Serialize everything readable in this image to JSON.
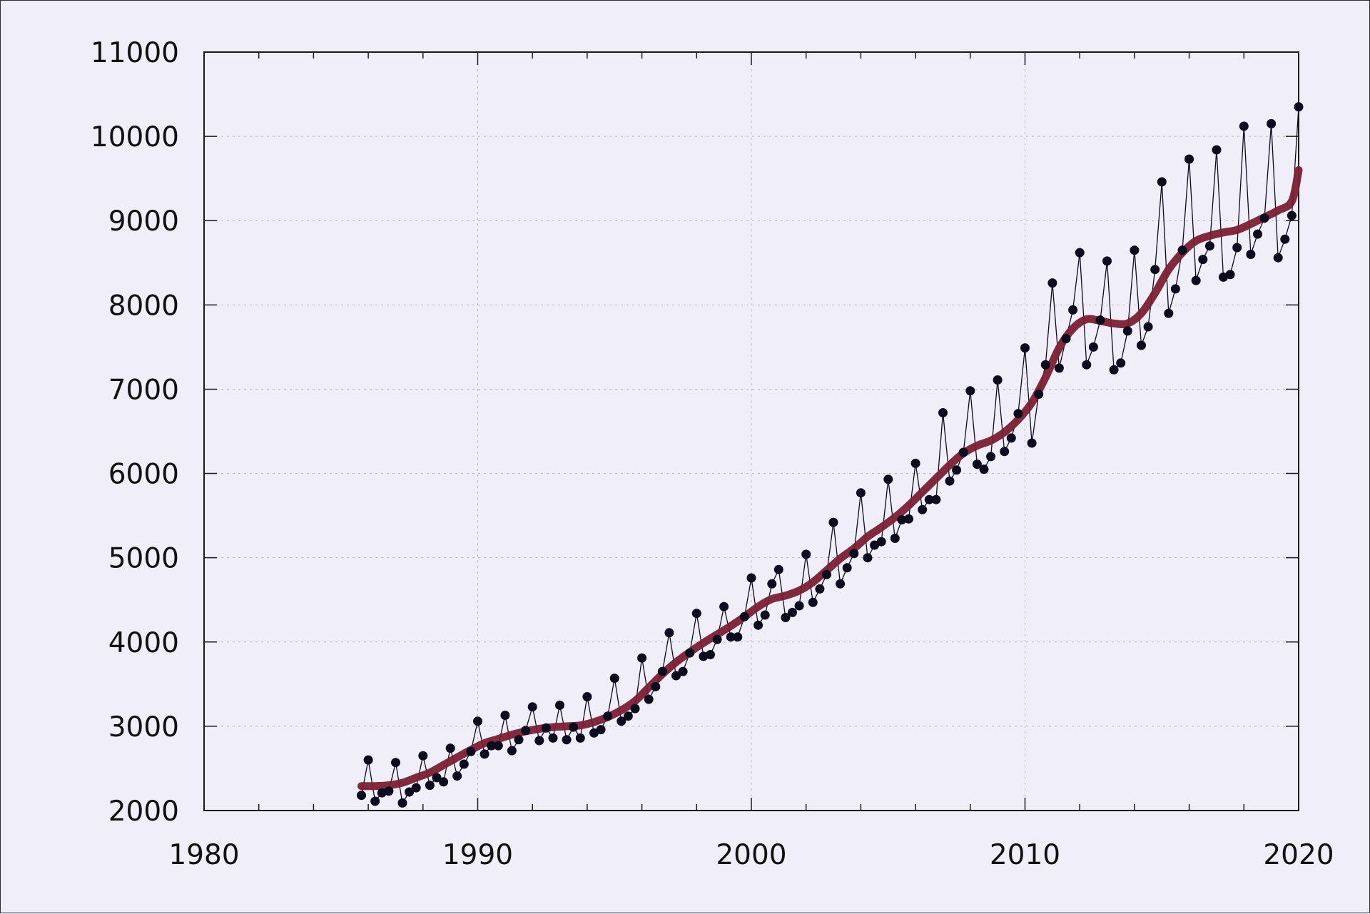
{
  "chart_data": {
    "type": "line",
    "title": "",
    "xlabel": "",
    "ylabel": "",
    "xlim": [
      1980,
      2020
    ],
    "ylim": [
      2000,
      11000
    ],
    "x_ticks": [
      "1980",
      "1990",
      "2000",
      "2010",
      "2020"
    ],
    "y_ticks": [
      "2000",
      "3000",
      "4000",
      "5000",
      "6000",
      "7000",
      "8000",
      "9000",
      "10000",
      "11000"
    ],
    "grid": true,
    "legend": "none",
    "colors": {
      "observed": "#0d0b1e",
      "trend": "#7a1f33",
      "background": "#f0eef9"
    },
    "series": [
      {
        "style": "thin line with dot markers",
        "x": [
          1985.75,
          1986.0,
          1986.25,
          1986.5,
          1986.75,
          1987.0,
          1987.25,
          1987.5,
          1987.75,
          1988.0,
          1988.25,
          1988.5,
          1988.75,
          1989.0,
          1989.25,
          1989.5,
          1989.75,
          1990.0,
          1990.25,
          1990.5,
          1990.75,
          1991.0,
          1991.25,
          1991.5,
          1991.75,
          1992.0,
          1992.25,
          1992.5,
          1992.75,
          1993.0,
          1993.25,
          1993.5,
          1993.75,
          1994.0,
          1994.25,
          1994.5,
          1994.75,
          1995.0,
          1995.25,
          1995.5,
          1995.75,
          1996.0,
          1996.25,
          1996.5,
          1996.75,
          1997.0,
          1997.25,
          1997.5,
          1997.75,
          1998.0,
          1998.25,
          1998.5,
          1998.75,
          1999.0,
          1999.25,
          1999.5,
          1999.75,
          2000.0,
          2000.25,
          2000.5,
          2000.75,
          2001.0,
          2001.25,
          2001.5,
          2001.75,
          2002.0,
          2002.25,
          2002.5,
          2002.75,
          2003.0,
          2003.25,
          2003.5,
          2003.75,
          2004.0,
          2004.25,
          2004.5,
          2004.75,
          2005.0,
          2005.25,
          2005.5,
          2005.75,
          2006.0,
          2006.25,
          2006.5,
          2006.75,
          2007.0,
          2007.25,
          2007.5,
          2007.75,
          2008.0,
          2008.25,
          2008.5,
          2008.75,
          2009.0,
          2009.25,
          2009.5,
          2009.75,
          2010.0,
          2010.25,
          2010.5,
          2010.75,
          2011.0,
          2011.25,
          2011.5,
          2011.75,
          2012.0,
          2012.25,
          2012.5,
          2012.75,
          2013.0,
          2013.25,
          2013.5,
          2013.75,
          2014.0,
          2014.25,
          2014.5,
          2014.75,
          2015.0,
          2015.25,
          2015.5,
          2015.75,
          2016.0,
          2016.25,
          2016.5,
          2016.75,
          2017.0,
          2017.25,
          2017.5,
          2017.75,
          2018.0,
          2018.25,
          2018.5,
          2018.75,
          2019.0,
          2019.25,
          2019.5,
          2019.75,
          2020.0
        ],
        "values": [
          2180,
          2600,
          2110,
          2210,
          2230,
          2570,
          2090,
          2220,
          2270,
          2650,
          2300,
          2390,
          2340,
          2740,
          2410,
          2550,
          2700,
          3060,
          2670,
          2770,
          2770,
          3130,
          2710,
          2840,
          2950,
          3230,
          2830,
          2980,
          2860,
          3250,
          2840,
          2990,
          2860,
          3350,
          2920,
          2960,
          3120,
          3570,
          3060,
          3120,
          3210,
          3810,
          3320,
          3470,
          3650,
          4110,
          3600,
          3650,
          3870,
          4340,
          3830,
          3850,
          4030,
          4420,
          4060,
          4060,
          4300,
          4760,
          4200,
          4320,
          4690,
          4860,
          4290,
          4350,
          4430,
          5040,
          4470,
          4630,
          4800,
          5420,
          4690,
          4880,
          5050,
          5770,
          5000,
          5150,
          5190,
          5930,
          5230,
          5450,
          5460,
          6120,
          5570,
          5690,
          5690,
          6720,
          5910,
          6040,
          6250,
          6980,
          6110,
          6050,
          6200,
          7110,
          6260,
          6420,
          6710,
          7490,
          6360,
          6940,
          7290,
          8260,
          7250,
          7600,
          7940,
          8620,
          7290,
          7500,
          7820,
          8520,
          7230,
          7310,
          7690,
          8650,
          7520,
          7740,
          8420,
          9460,
          7900,
          8190,
          8650,
          9730,
          8290,
          8540,
          8700,
          9840,
          8330,
          8360,
          8680,
          10120,
          8600,
          8840,
          9030,
          10150,
          8560,
          8780,
          9060,
          10350
        ]
      },
      {
        "style": "thick smooth trend line",
        "x": [
          1985.75,
          1986.25,
          1986.75,
          1987.25,
          1987.75,
          1988.25,
          1988.75,
          1989.25,
          1989.75,
          1990.25,
          1990.75,
          1991.25,
          1991.75,
          1992.25,
          1992.75,
          1993.25,
          1993.75,
          1994.25,
          1994.75,
          1995.25,
          1995.75,
          1996.25,
          1996.75,
          1997.25,
          1997.75,
          1998.25,
          1998.75,
          1999.25,
          1999.75,
          2000.25,
          2000.75,
          2001.25,
          2001.75,
          2002.25,
          2002.75,
          2003.25,
          2003.75,
          2004.25,
          2004.75,
          2005.25,
          2005.75,
          2006.25,
          2006.75,
          2007.25,
          2007.75,
          2008.25,
          2008.75,
          2009.25,
          2009.75,
          2010.25,
          2010.75,
          2011.25,
          2011.75,
          2012.25,
          2012.75,
          2013.25,
          2013.75,
          2014.25,
          2014.75,
          2015.25,
          2015.75,
          2016.25,
          2016.75,
          2017.25,
          2017.75,
          2018.25,
          2018.75,
          2019.25,
          2019.75,
          2020.0
        ],
        "values": [
          2290,
          2290,
          2300,
          2330,
          2390,
          2450,
          2540,
          2630,
          2720,
          2800,
          2850,
          2900,
          2940,
          2970,
          2990,
          3000,
          3010,
          3050,
          3110,
          3190,
          3300,
          3460,
          3620,
          3760,
          3880,
          3990,
          4090,
          4190,
          4300,
          4420,
          4510,
          4550,
          4610,
          4710,
          4850,
          4990,
          5110,
          5250,
          5360,
          5480,
          5620,
          5780,
          5940,
          6100,
          6240,
          6330,
          6390,
          6490,
          6640,
          6840,
          7140,
          7490,
          7720,
          7830,
          7810,
          7780,
          7780,
          7900,
          8140,
          8420,
          8620,
          8760,
          8820,
          8860,
          8890,
          8960,
          9040,
          9120,
          9230,
          9600
        ]
      }
    ]
  }
}
